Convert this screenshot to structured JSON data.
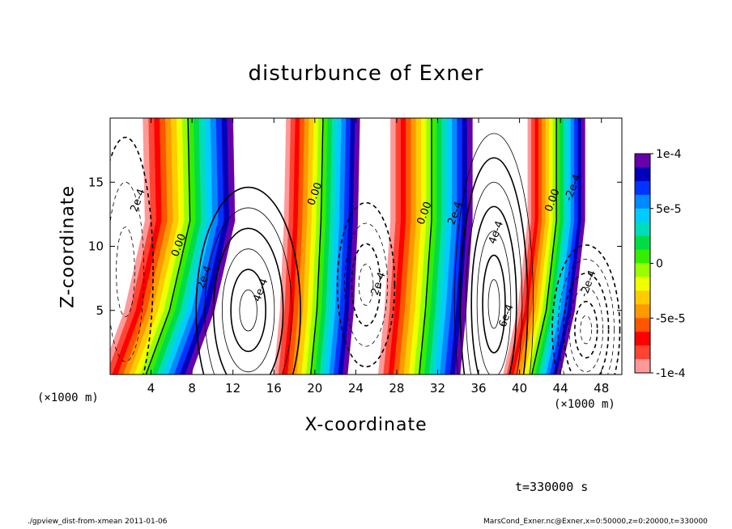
{
  "page": {
    "title": "disturbunce of Exner",
    "time_label": "t=330000 s",
    "footer_left": "./gpview_dist-from-xmean  2011-01-06",
    "footer_right": "MarsCond_Exner.nc@Exner,x=0:50000,z=0:20000,t=330000"
  },
  "chart_data": {
    "type": "heatmap",
    "title": "disturbunce of Exner",
    "xlabel": "X-coordinate",
    "ylabel": "Z-coordinate",
    "x_unit": "(×1000 m)",
    "xlim": [
      0,
      50
    ],
    "ylim": [
      0,
      20
    ],
    "x_ticks": [
      4,
      8,
      12,
      16,
      20,
      24,
      28,
      32,
      36,
      40,
      44,
      48
    ],
    "y_ticks": [
      5,
      10,
      15
    ],
    "colorbar": {
      "range": [
        -0.0001,
        0.0001
      ],
      "tick_labels": [
        "1e-4",
        "5e-5",
        "0",
        "-5e-5",
        "-1e-4"
      ],
      "colors": [
        "#ff9999",
        "#ff4433",
        "#ff0000",
        "#ff5500",
        "#ff9900",
        "#ffcc00",
        "#eeff00",
        "#99ff00",
        "#33ee00",
        "#00dd44",
        "#00ddbb",
        "#00ccff",
        "#0088ff",
        "#0033ff",
        "#0000bb",
        "#6600aa"
      ]
    },
    "contour_labels": [
      "2e-4",
      "0.00",
      "2e-4",
      "4e-4",
      "0.00",
      "2e-4",
      "0.00",
      "2e-4",
      "4e-4",
      "6e-4",
      "0.00",
      "-2e-4",
      "-2e-4"
    ],
    "zero_line_x": [
      [
        3.5,
        5.8,
        7.8,
        7.6
      ],
      [
        19.6,
        20.2,
        20.6,
        20.8
      ],
      [
        30.2,
        30.8,
        31.4,
        31.4
      ],
      [
        41.2,
        42.6,
        43.6,
        43.6
      ]
    ],
    "zero_line_z": [
      0,
      5,
      12,
      20
    ]
  }
}
